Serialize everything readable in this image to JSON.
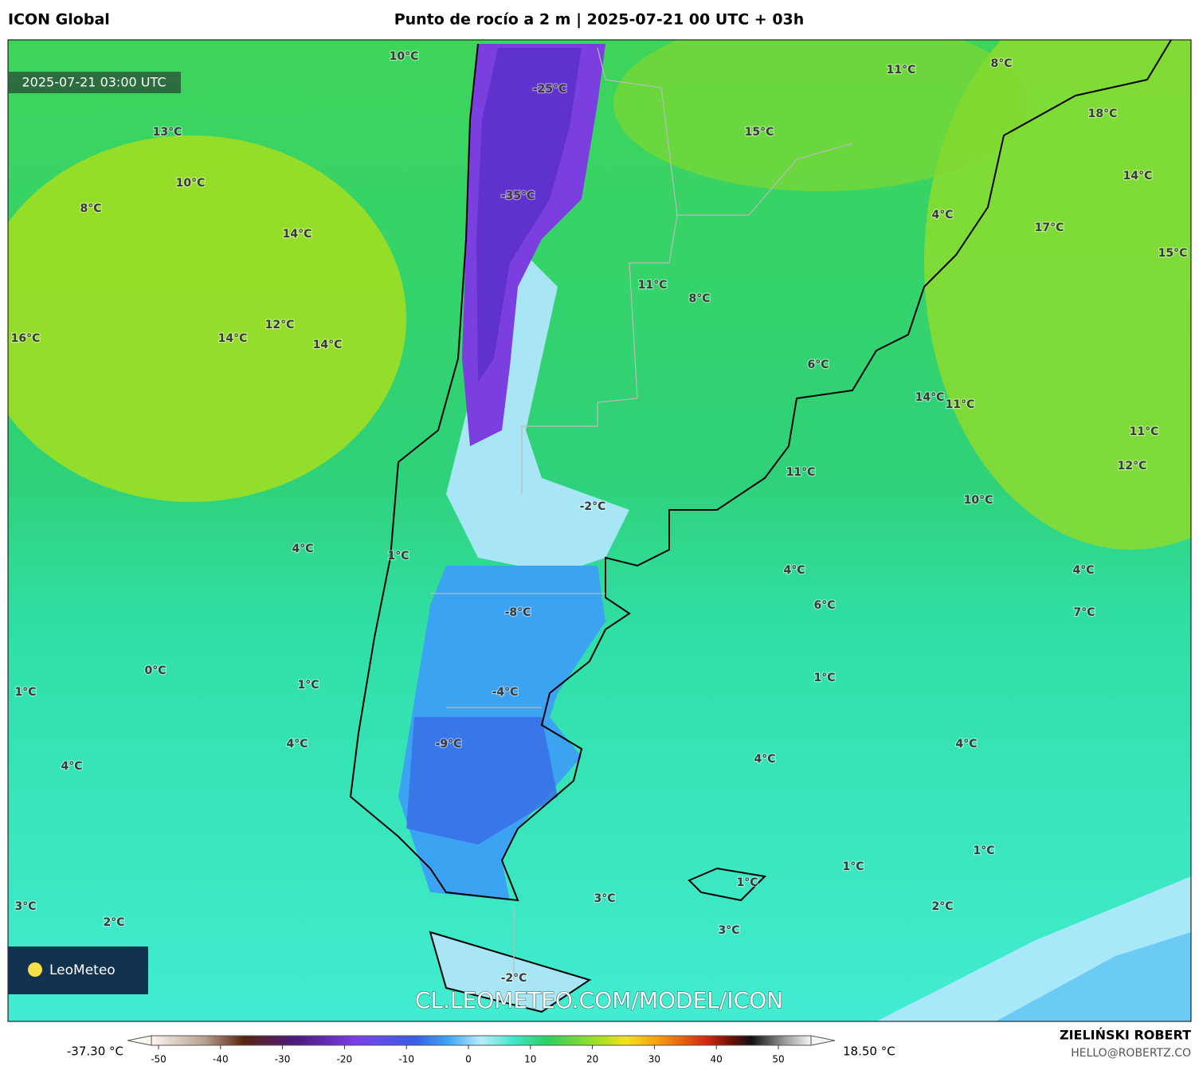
{
  "header": {
    "model": "ICON Global",
    "title": "Punto de rocío a 2 m | 2025-07-21 00 UTC + 03h"
  },
  "map": {
    "valid_time": "2025-07-21 03:00 UTC",
    "labels": [
      "10°C",
      "11°C",
      "8°C",
      "-25°C",
      "18°C",
      "13°C",
      "15°C",
      "10°C",
      "-35°C",
      "14°C",
      "8°C",
      "4°C",
      "14°C",
      "17°C",
      "15°C",
      "11°C",
      "8°C",
      "12°C",
      "16°C",
      "14°C",
      "14°C",
      "6°C",
      "14°C",
      "11°C",
      "11°C",
      "12°C",
      "11°C",
      "10°C",
      "-2°C",
      "4°C",
      "1°C",
      "4°C",
      "4°C",
      "-8°C",
      "6°C",
      "7°C",
      "0°C",
      "1°C",
      "1°C",
      "1°C",
      "-4°C",
      "4°C",
      "-9°C",
      "4°C",
      "4°C",
      "4°C",
      "1°C",
      "1°C",
      "1°C",
      "3°C",
      "3°C",
      "2°C",
      "2°C",
      "3°C",
      "-2°C"
    ],
    "logo": "LeoMeteo",
    "watermark": "CL.LEOMETEO.COM/MODEL/ICON"
  },
  "colorbar": {
    "min_label": "-37.30 °C",
    "max_label": "18.50 °C",
    "lim": [
      -50,
      50
    ],
    "ticks": [
      -50,
      -40,
      -30,
      -20,
      -10,
      0,
      10,
      20,
      30,
      40,
      50
    ]
  },
  "footer": {
    "author": "ZIELIŃSKI ROBERT",
    "contact": "HELLO@ROBERTZ.CO"
  }
}
